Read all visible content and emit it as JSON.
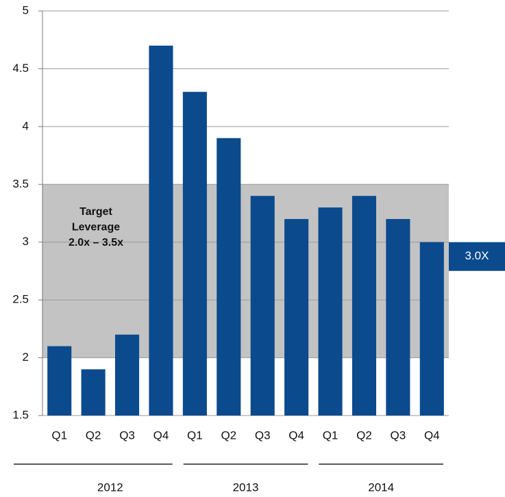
{
  "chart_data": {
    "type": "bar",
    "categories": [
      "Q1",
      "Q2",
      "Q3",
      "Q4",
      "Q1",
      "Q2",
      "Q3",
      "Q4",
      "Q1",
      "Q2",
      "Q3",
      "Q4"
    ],
    "values": [
      2.1,
      1.9,
      2.2,
      4.7,
      4.3,
      3.9,
      3.4,
      3.2,
      3.3,
      3.4,
      3.2,
      3.0
    ],
    "value_labels": [
      null,
      null,
      null,
      null,
      null,
      null,
      null,
      null,
      null,
      null,
      null,
      "3.0X"
    ],
    "color": "#0b4a8d",
    "groups": [
      "2012",
      "2013",
      "2014"
    ],
    "target_band": {
      "range": [
        2.0,
        3.5
      ],
      "label": [
        "Target",
        "Leverage",
        "2.0x – 3.5x"
      ],
      "color": "#c3c3c3"
    },
    "ylim": [
      1.5,
      5
    ],
    "yticks": [
      1.5,
      2,
      2.5,
      3,
      3.5,
      4,
      4.5,
      5
    ],
    "grid": true
  }
}
